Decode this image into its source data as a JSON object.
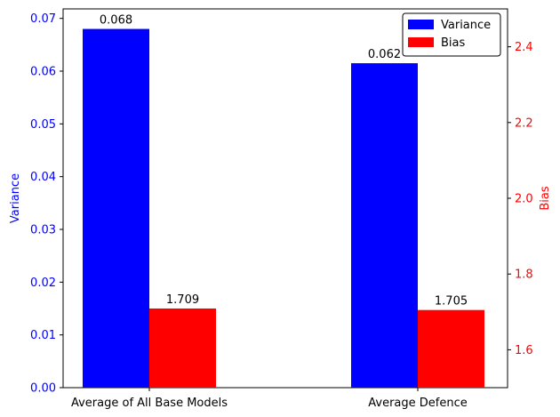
{
  "chart_data": {
    "type": "bar",
    "dual_axis": true,
    "categories": [
      "Average of All Base Models",
      "Average Defence"
    ],
    "series": [
      {
        "name": "Variance",
        "axis": "left",
        "color": "#0000ff",
        "values": [
          0.068,
          0.0615
        ],
        "labels": [
          "0.068",
          "0.062"
        ]
      },
      {
        "name": "Bias",
        "axis": "right",
        "color": "#ff0000",
        "values": [
          1.709,
          1.705
        ],
        "labels": [
          "1.709",
          "1.705"
        ]
      }
    ],
    "left_axis": {
      "label": "Variance",
      "color": "#0000ff",
      "range": [
        0,
        0.0718
      ],
      "ticks": [
        0,
        0.01,
        0.02,
        0.03,
        0.04,
        0.05,
        0.06,
        0.07
      ],
      "tick_labels": [
        "0.00",
        "0.01",
        "0.02",
        "0.03",
        "0.04",
        "0.05",
        "0.06",
        "0.07"
      ]
    },
    "right_axis": {
      "label": "Bias",
      "color": "#ff0000",
      "range": [
        1.5,
        2.5
      ],
      "ticks": [
        1.6,
        1.8,
        2.0,
        2.2,
        2.4
      ],
      "tick_labels": [
        "1.6",
        "1.8",
        "2.0",
        "2.2",
        "2.4"
      ]
    },
    "legend": {
      "position": "top-right",
      "entries": [
        {
          "name": "Variance",
          "color": "#0000ff"
        },
        {
          "name": "Bias",
          "color": "#ff0000"
        }
      ]
    },
    "grid": false,
    "title": ""
  }
}
